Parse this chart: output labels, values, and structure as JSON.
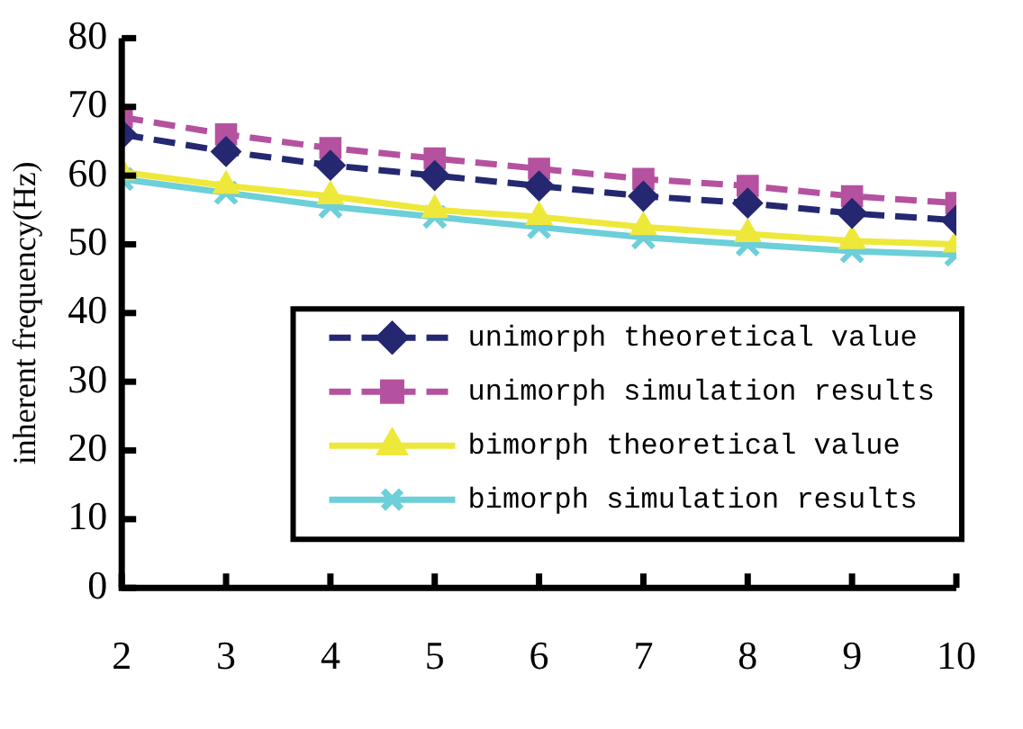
{
  "chart_data": {
    "type": "line",
    "ylabel": "inherent frequency(Hz)",
    "x": [
      2,
      3,
      4,
      5,
      6,
      7,
      8,
      9,
      10
    ],
    "xlim": [
      2,
      10
    ],
    "xticks": [
      2,
      3,
      4,
      5,
      6,
      7,
      8,
      9,
      10
    ],
    "ylim": [
      0,
      80
    ],
    "yticks": [
      0,
      10,
      20,
      30,
      40,
      50,
      60,
      70,
      80
    ],
    "grid": false,
    "legend": "bottom right",
    "series": [
      {
        "name": "unimorph theoretical value",
        "color": "#252870",
        "marker": "diamond",
        "line_style": "dashed",
        "values": [
          66,
          63.5,
          61.5,
          60,
          58.5,
          57,
          56,
          54.5,
          53.5
        ]
      },
      {
        "name": "unimorph simulation results",
        "color": "#b5529f",
        "marker": "square",
        "line_style": "dashed",
        "values": [
          68.5,
          66,
          64,
          62.5,
          61,
          59.5,
          58.5,
          57,
          56
        ]
      },
      {
        "name": "bimorph theoretical value",
        "color": "#eee83a",
        "marker": "triangle",
        "line_style": "solid",
        "values": [
          60.5,
          58.5,
          57,
          55,
          54,
          52.5,
          51.5,
          50.5,
          50
        ]
      },
      {
        "name": "bimorph simulation results",
        "color": "#6ccfd9",
        "marker": "cross",
        "line_style": "solid",
        "values": [
          59.5,
          57.5,
          55.5,
          54,
          52.5,
          51,
          50,
          49,
          48.5
        ]
      }
    ]
  }
}
